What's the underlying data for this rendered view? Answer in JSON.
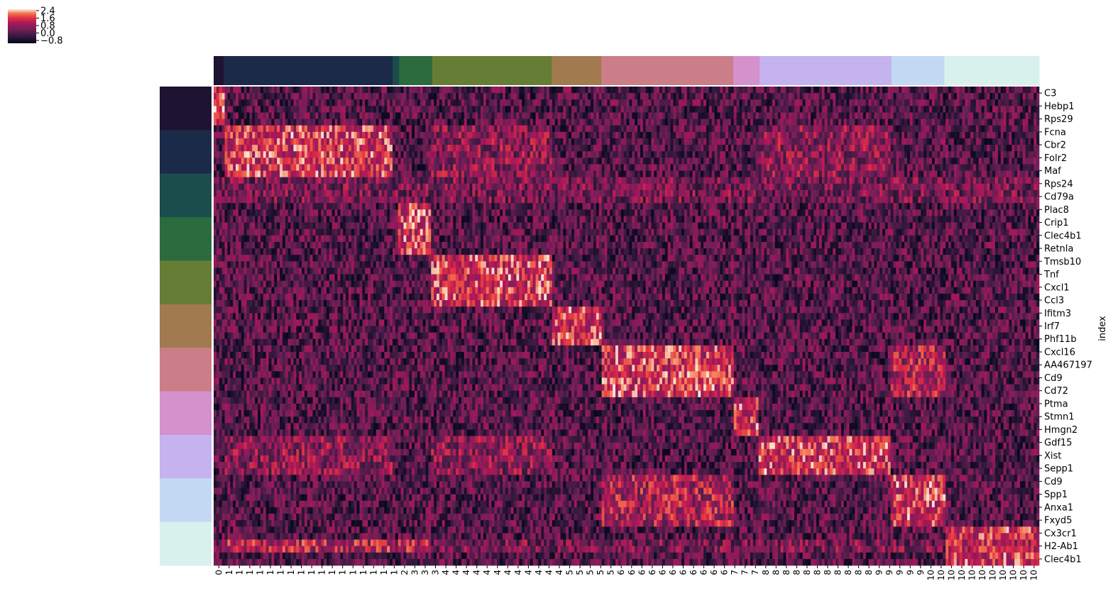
{
  "chart_data": {
    "type": "heatmap",
    "title": "",
    "ylabel": "index",
    "xlabel": "",
    "colorbar": {
      "ticks": [
        "2.4",
        "1.6",
        "0.8",
        "0.0",
        "−0.8"
      ],
      "range": [
        -0.8,
        2.4
      ],
      "colormap": "rocket",
      "placement": "top-left"
    },
    "genes": [
      "C3",
      "Hebp1",
      "Rps29",
      "Fcna",
      "Cbr2",
      "Folr2",
      "Maf",
      "Rps24",
      "Cd79a",
      "Plac8",
      "Crip1",
      "Clec4b1",
      "Retnla",
      "Tmsb10",
      "Tnf",
      "Cxcl1",
      "Ccl3",
      "Ifitm3",
      "Irf7",
      "Phf11b",
      "Cxcl16",
      "AA467197",
      "Cd9",
      "Cd72",
      "Ptma",
      "Stmn1",
      "Hmgn2",
      "Gdf15",
      "Xist",
      "Sepp1",
      "Cd9",
      "Spp1",
      "Anxa1",
      "Fxyd5",
      "Cx3cr1",
      "H2-Ab1",
      "Clec4b1"
    ],
    "clusters": [
      "0",
      "1",
      "2",
      "3",
      "4",
      "5",
      "6",
      "7",
      "8",
      "9",
      "10"
    ],
    "cluster_colors": [
      "#1e1330",
      "#1c2a49",
      "#1c4d4d",
      "#2b6b3e",
      "#667d35",
      "#a27a4f",
      "#cc7e88",
      "#d491cc",
      "#c4b3ee",
      "#c3d9f3",
      "#d9f1ed"
    ],
    "column_cluster_fractions": [
      0.012,
      0.205,
      0.008,
      0.04,
      0.145,
      0.06,
      0.16,
      0.032,
      0.16,
      0.064,
      0.115
    ],
    "x_tick_labels": [
      "0",
      "1",
      "1",
      "1",
      "1",
      "1",
      "1",
      "1",
      "1",
      "1",
      "1",
      "1",
      "1",
      "1",
      "1",
      "1",
      "1",
      "1",
      "2",
      "3",
      "3",
      "3",
      "4",
      "4",
      "4",
      "4",
      "4",
      "4",
      "4",
      "4",
      "4",
      "4",
      "4",
      "4",
      "5",
      "5",
      "5",
      "5",
      "5",
      "6",
      "6",
      "6",
      "6",
      "6",
      "6",
      "6",
      "6",
      "6",
      "6",
      "6",
      "7",
      "7",
      "7",
      "8",
      "8",
      "8",
      "8",
      "8",
      "8",
      "8",
      "8",
      "8",
      "8",
      "8",
      "9",
      "9",
      "9",
      "9",
      "9",
      "10",
      "10",
      "10",
      "10",
      "10",
      "10",
      "10",
      "10",
      "10",
      "10",
      "10"
    ],
    "gene_clusters": [
      0,
      0,
      0,
      1,
      1,
      1,
      1,
      2,
      2,
      3,
      3,
      3,
      3,
      4,
      4,
      4,
      4,
      5,
      5,
      5,
      6,
      6,
      6,
      6,
      7,
      7,
      7,
      8,
      8,
      8,
      9,
      9,
      9,
      9,
      10,
      10,
      10
    ],
    "row_colors_per_cluster_left": "one block per cluster, top to bottom"
  }
}
